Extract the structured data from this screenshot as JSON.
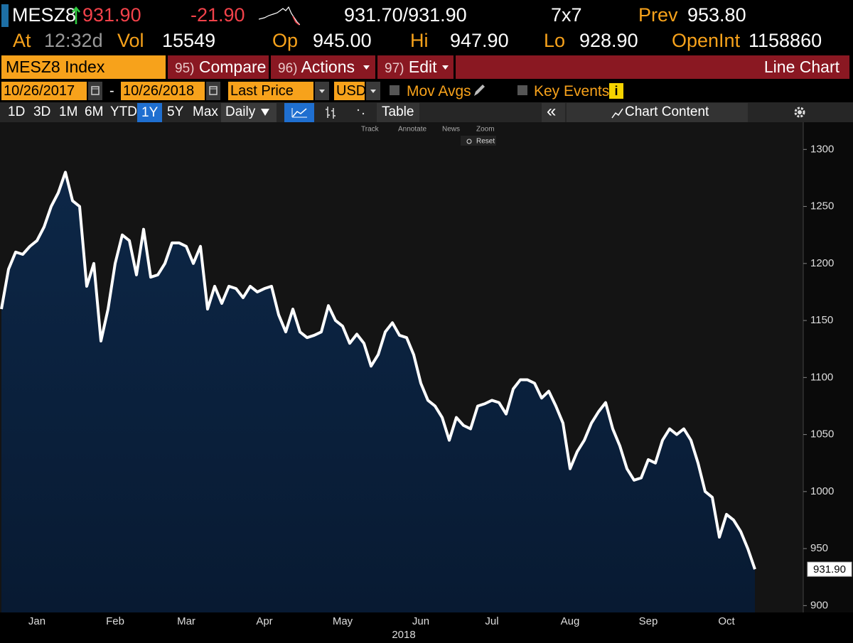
{
  "header": {
    "ticker": "MESZ8",
    "last": "931.90",
    "change": "-21.90",
    "bid_ask": "931.70/931.90",
    "size": "7x7",
    "prev_label": "Prev",
    "prev": "953.80",
    "time_label": "At",
    "time": "12:32d",
    "vol_label": "Vol",
    "vol": "15549",
    "open_label": "Op",
    "open": "945.00",
    "high_label": "Hi",
    "high": "947.90",
    "low_label": "Lo",
    "low": "928.90",
    "open_int_label": "OpenInt",
    "open_int": "1158860"
  },
  "toolbar": {
    "security": "MESZ8 Index",
    "buttons": [
      {
        "num": "95)",
        "label": "Compare"
      },
      {
        "num": "96)",
        "label": "Actions"
      },
      {
        "num": "97)",
        "label": "Edit"
      }
    ],
    "chart_name": "Line Chart",
    "start_date": "10/26/2017",
    "date_separator": "-",
    "end_date": "10/26/2018",
    "field": "Last Price",
    "currency": "USD",
    "mov_avgs": "Mov Avgs",
    "key_events": "Key Events",
    "key_events_info": "i",
    "ranges": [
      "1D",
      "3D",
      "1M",
      "6M",
      "YTD",
      "1Y",
      "5Y",
      "Max"
    ],
    "active_range": "1Y",
    "frequency": "Daily",
    "table": "Table",
    "collapse": "«",
    "chart_content": "Chart Content",
    "chart_tools": [
      "Track",
      "Annotate",
      "News",
      "Zoom"
    ],
    "reset": "Reset"
  },
  "chart_data": {
    "type": "area",
    "x_label": "2018",
    "color": "#ffffff",
    "fill": "#0d2747",
    "categories": [
      null,
      null,
      null,
      null,
      null,
      "Jan",
      null,
      null,
      null,
      null,
      null,
      null,
      null,
      null,
      null,
      null,
      "Feb",
      null,
      null,
      null,
      null,
      null,
      null,
      null,
      null,
      null,
      "Mar",
      null,
      null,
      null,
      null,
      null,
      null,
      null,
      null,
      null,
      null,
      "Apr",
      null,
      null,
      null,
      null,
      null,
      null,
      null,
      null,
      null,
      null,
      "May",
      null,
      null,
      null,
      null,
      null,
      null,
      null,
      null,
      null,
      null,
      "Jun",
      null,
      null,
      null,
      null,
      null,
      null,
      null,
      null,
      null,
      "Jul",
      null,
      null,
      null,
      null,
      null,
      null,
      null,
      null,
      null,
      null,
      "Aug",
      null,
      null,
      null,
      null,
      null,
      null,
      null,
      null,
      null,
      null,
      "Sep",
      null,
      null,
      null,
      null,
      null,
      null,
      null,
      null,
      null,
      null,
      "Oct",
      null,
      null,
      null,
      null
    ],
    "series": [
      {
        "name": "MESZ8 Index",
        "color": "#ffffff",
        "values": [
          1160,
          1195,
          1210,
          1208,
          1215,
          1220,
          1232,
          1250,
          1262,
          1280,
          1255,
          1250,
          1180,
          1200,
          1132,
          1160,
          1200,
          1225,
          1220,
          1190,
          1230,
          1188,
          1190,
          1200,
          1218,
          1218,
          1215,
          1200,
          1215,
          1160,
          1180,
          1165,
          1180,
          1178,
          1170,
          1180,
          1175,
          1178,
          1180,
          1155,
          1140,
          1160,
          1140,
          1135,
          1137,
          1140,
          1163,
          1150,
          1145,
          1130,
          1138,
          1130,
          1110,
          1120,
          1140,
          1148,
          1137,
          1135,
          1120,
          1095,
          1080,
          1075,
          1065,
          1045,
          1065,
          1058,
          1055,
          1075,
          1077,
          1080,
          1078,
          1068,
          1090,
          1098,
          1098,
          1095,
          1082,
          1088,
          1075,
          1060,
          1020,
          1035,
          1045,
          1060,
          1070,
          1078,
          1055,
          1040,
          1020,
          1010,
          1012,
          1028,
          1025,
          1045,
          1055,
          1050,
          1055,
          1045,
          1025,
          1000,
          995,
          960,
          980,
          975,
          965,
          950,
          931.9
        ]
      }
    ],
    "ylim": [
      894,
      1322
    ],
    "yticks": [
      900,
      950,
      1000,
      1050,
      1100,
      1150,
      1200,
      1250,
      1300
    ],
    "y_axis_side": "right"
  }
}
